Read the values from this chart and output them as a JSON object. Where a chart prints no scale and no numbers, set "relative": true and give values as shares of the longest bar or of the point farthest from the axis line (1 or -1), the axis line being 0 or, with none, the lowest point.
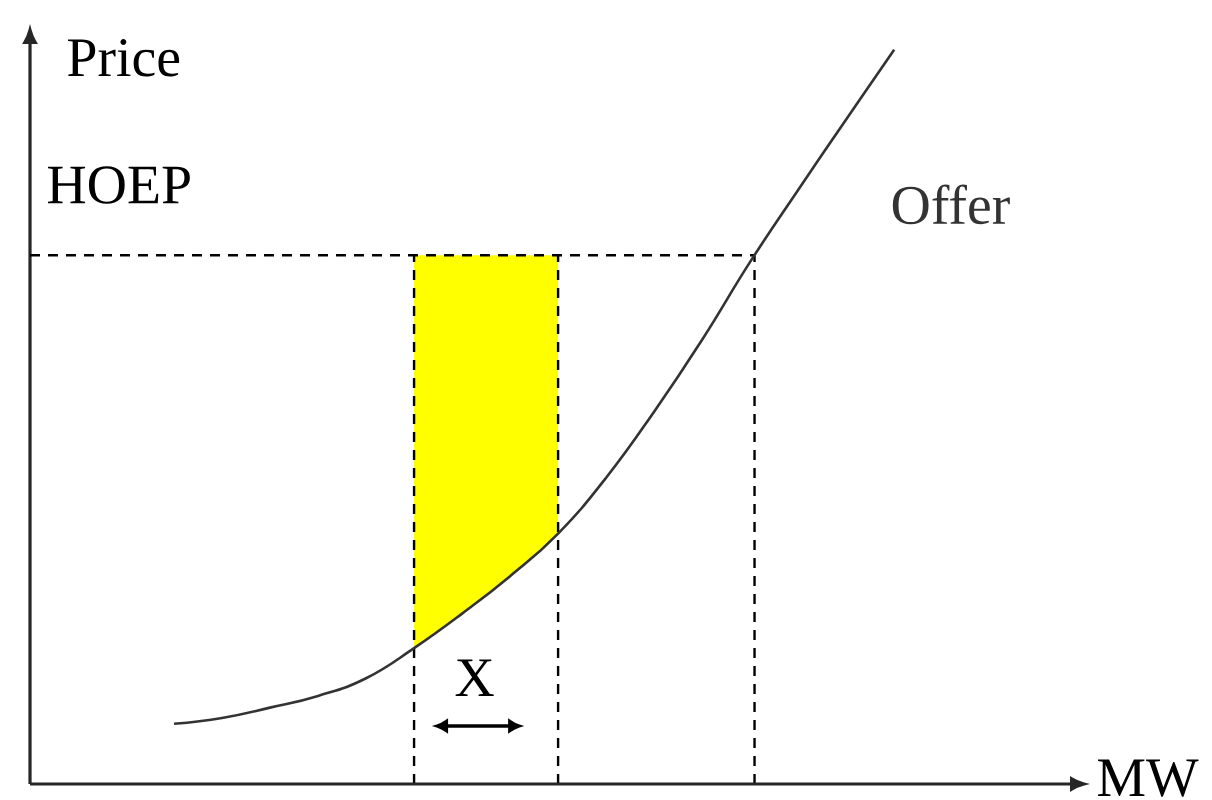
{
  "chart_data": {
    "type": "line",
    "xlabel": "MW",
    "ylabel": "Price",
    "relative": true,
    "categories": [
      null,
      null,
      null,
      null,
      null,
      null,
      null,
      null,
      null,
      null,
      null,
      null,
      null,
      null,
      null,
      null
    ],
    "series": [
      {
        "name": "Offer",
        "color": "#333333",
        "values": [
          0.082,
          0.09,
          0.104,
          0.12,
          0.144,
          0.185,
          0.232,
          0.283,
          0.341,
          0.417,
          0.507,
          0.605,
          0.711,
          0.809,
          0.905,
          1.0
        ]
      }
    ],
    "ref_lines": [
      {
        "axis": "y",
        "value": 0.72,
        "label": "HOEP",
        "color": "#000000",
        "line_style": "dashed"
      }
    ],
    "annotations": [
      "X"
    ]
  }
}
